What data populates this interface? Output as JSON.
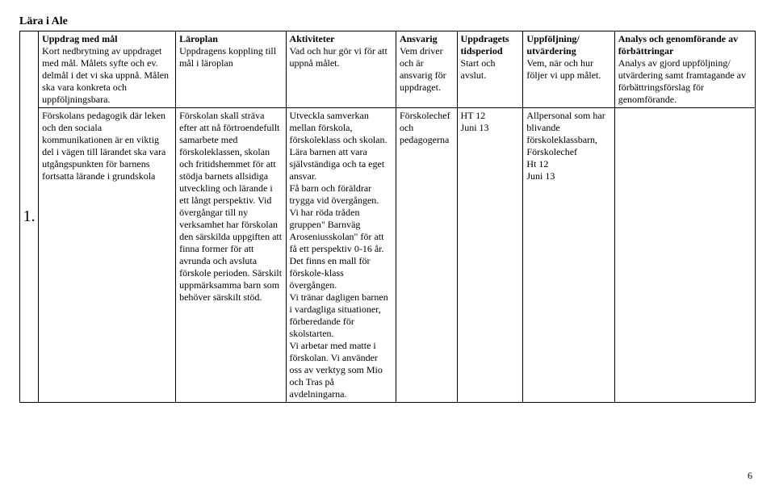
{
  "page": {
    "title": "Lära i Ale",
    "number": "6"
  },
  "rowNumber": "1.",
  "headers": {
    "uppdrag": {
      "title": "Uppdrag med mål",
      "body": "Kort nedbrytning av uppdraget med mål. Målets syfte och ev. delmål i det vi ska uppnå. Målen ska vara konkreta och uppföljningsbara."
    },
    "laroplan": {
      "title": "Läroplan",
      "body": "Uppdragens koppling till mål i läroplan"
    },
    "aktiviteter": {
      "title": "Aktiviteter",
      "body": "Vad och hur gör vi för att uppnå målet."
    },
    "ansvarig": {
      "title": "Ansvarig",
      "body": "Vem driver och är ansvarig för uppdraget."
    },
    "tidsperiod": {
      "title": "Uppdragets tidsperiod",
      "body": "Start och avslut."
    },
    "uppfoljning": {
      "title": "Uppföljning/ utvärdering",
      "body": "Vem, när och hur följer vi upp målet."
    },
    "analys": {
      "title": "Analys och genomförande av förbättringar",
      "body": "Analys av gjord uppföljning/ utvärdering samt framtagande av förbättringsförslag för genomförande."
    }
  },
  "row1": {
    "uppdrag": "Förskolans pedagogik där leken och den sociala kommunikationen är en viktig del i vägen till lärandet ska vara utgångspunkten för barnens fortsatta lärande i grundskola",
    "laroplan": "Förskolan skall sträva efter att nå förtroendefullt samarbete med förskoleklassen, skolan och fritidshemmet för att stödja barnets allsidiga utveckling och lärande i ett långt perspektiv. Vid övergångar till ny verksamhet har förskolan den särskilda uppgiften att finna former för att avrunda och avsluta förskole perioden. Särskilt uppmärksamma barn som behöver särskilt stöd.",
    "aktiviteter": "Utveckla samverkan mellan förskola, förskoleklass och skolan.\nLära barnen att vara självständiga och ta eget ansvar.\nFå barn och föräldrar trygga vid övergången.\nVi har röda tråden gruppen\" Barnväg Aroseniusskolan\" för att få ett perspektiv 0-16 år.\nDet finns en mall för förskole-klass övergången.\nVi tränar dagligen  barnen i vardagliga situationer, förberedande för skolstarten.\nVi arbetar med matte i förskolan. Vi använder oss av verktyg som Mio och Tras på avdelningarna.",
    "ansvarig": "Förskolechef och pedagogerna",
    "tidsperiod": "HT 12\nJuni 13",
    "uppfoljning": "Allpersonal som har blivande förskoleklassbarn, Förskolechef\nHt 12\nJuni 13",
    "analys": ""
  }
}
